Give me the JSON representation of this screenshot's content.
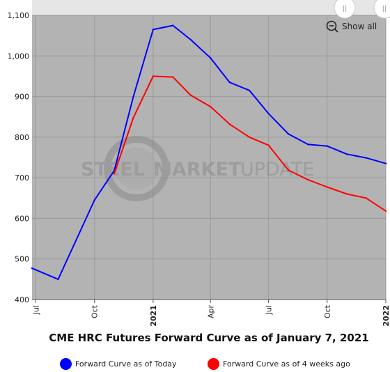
{
  "chart_data": {
    "type": "line",
    "title": "CME HRC Futures Forward Curve as of January 7, 2021",
    "ylim": [
      400,
      1100
    ],
    "yticks": [
      400,
      500,
      600,
      700,
      800,
      900,
      1000,
      1100
    ],
    "ytick_labels": [
      "400",
      "500",
      "600",
      "700",
      "800",
      "900",
      "1,000",
      "1,100"
    ],
    "xlim": [
      "2020-06-25",
      "2022-01-01"
    ],
    "xticks": [
      {
        "date": "2020-07-01",
        "label": "Jul",
        "bold": false
      },
      {
        "date": "2020-10-01",
        "label": "Oct",
        "bold": false
      },
      {
        "date": "2021-01-01",
        "label": "2021",
        "bold": true
      },
      {
        "date": "2021-04-01",
        "label": "Apr",
        "bold": false
      },
      {
        "date": "2021-07-01",
        "label": "Jul",
        "bold": false
      },
      {
        "date": "2021-10-01",
        "label": "Oct",
        "bold": false
      },
      {
        "date": "2022-01-01",
        "label": "2022",
        "bold": true
      }
    ],
    "grid": true,
    "legend_position": "bottom",
    "series": [
      {
        "name": "Forward Curve as of Today",
        "color": "#0000ff",
        "points": [
          [
            "2020-06-25",
            477
          ],
          [
            "2020-08-05",
            450
          ],
          [
            "2020-10-01",
            645
          ],
          [
            "2020-11-01",
            718
          ],
          [
            "2020-12-01",
            900
          ],
          [
            "2021-01-01",
            1065
          ],
          [
            "2021-02-01",
            1075
          ],
          [
            "2021-03-01",
            1040
          ],
          [
            "2021-04-01",
            995
          ],
          [
            "2021-05-01",
            935
          ],
          [
            "2021-06-01",
            915
          ],
          [
            "2021-07-01",
            858
          ],
          [
            "2021-08-01",
            808
          ],
          [
            "2021-09-01",
            782
          ],
          [
            "2021-10-01",
            778
          ],
          [
            "2021-11-01",
            758
          ],
          [
            "2021-12-01",
            749
          ],
          [
            "2022-01-01",
            735
          ]
        ]
      },
      {
        "name": "Forward Curve as of 4 weeks ago",
        "color": "#ff0000",
        "points": [
          [
            "2020-11-01",
            710
          ],
          [
            "2020-12-01",
            848
          ],
          [
            "2021-01-01",
            950
          ],
          [
            "2021-02-01",
            948
          ],
          [
            "2021-03-01",
            903
          ],
          [
            "2021-04-01",
            875
          ],
          [
            "2021-05-01",
            832
          ],
          [
            "2021-06-01",
            800
          ],
          [
            "2021-07-01",
            780
          ],
          [
            "2021-08-01",
            719
          ],
          [
            "2021-09-01",
            695
          ],
          [
            "2021-10-01",
            677
          ],
          [
            "2021-11-01",
            660
          ],
          [
            "2021-12-01",
            650
          ],
          [
            "2022-01-01",
            618
          ]
        ]
      }
    ]
  },
  "watermark": {
    "word1": "STEEL",
    "word2": "MARKET",
    "word3": "UPDATE"
  },
  "controls": {
    "show_all_label": "Show all",
    "zoom_icon": "zoom-out-icon",
    "scrollbar_grip": "||"
  },
  "colors": {
    "plot_background": "#b3b3b3",
    "grid": "#9a9a9a",
    "navigator": "#e6e6e6"
  }
}
